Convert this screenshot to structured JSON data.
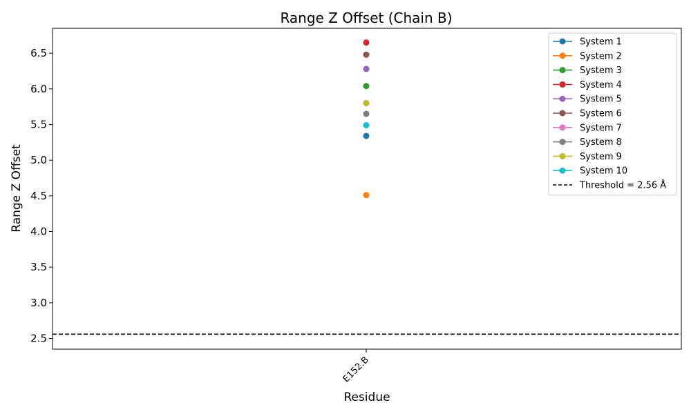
{
  "chart_data": {
    "type": "scatter",
    "title": "Range Z Offset (Chain B)",
    "xlabel": "Residue",
    "ylabel": "Range Z Offset",
    "categories": [
      "E152.B"
    ],
    "ylim": [
      2.35,
      6.85
    ],
    "yticks": [
      2.5,
      3.0,
      3.5,
      4.0,
      4.5,
      5.0,
      5.5,
      6.0,
      6.5
    ],
    "ytick_labels": [
      "2.5",
      "3.0",
      "3.5",
      "4.0",
      "4.5",
      "5.0",
      "5.5",
      "6.0",
      "6.5"
    ],
    "grid": false,
    "legend_position": "top-right",
    "series": [
      {
        "name": "System 1",
        "color": "#1f77b4",
        "values": [
          5.34
        ]
      },
      {
        "name": "System 2",
        "color": "#ff7f0e",
        "values": [
          4.51
        ]
      },
      {
        "name": "System 3",
        "color": "#2ca02c",
        "values": [
          6.04
        ]
      },
      {
        "name": "System 4",
        "color": "#d62728",
        "values": [
          6.65
        ]
      },
      {
        "name": "System 5",
        "color": "#9467bd",
        "values": [
          6.28
        ]
      },
      {
        "name": "System 6",
        "color": "#8c564b",
        "values": [
          6.48
        ]
      },
      {
        "name": "System 7",
        "color": "#e377c2",
        "values": [
          5.8
        ]
      },
      {
        "name": "System 8",
        "color": "#7f7f7f",
        "values": [
          5.65
        ]
      },
      {
        "name": "System 9",
        "color": "#bcbd22",
        "values": [
          5.8
        ]
      },
      {
        "name": "System 10",
        "color": "#17becf",
        "values": [
          5.49
        ]
      }
    ],
    "threshold": {
      "label": "Threshold = 2.56 Å",
      "value": 2.56,
      "color": "#000000"
    }
  }
}
